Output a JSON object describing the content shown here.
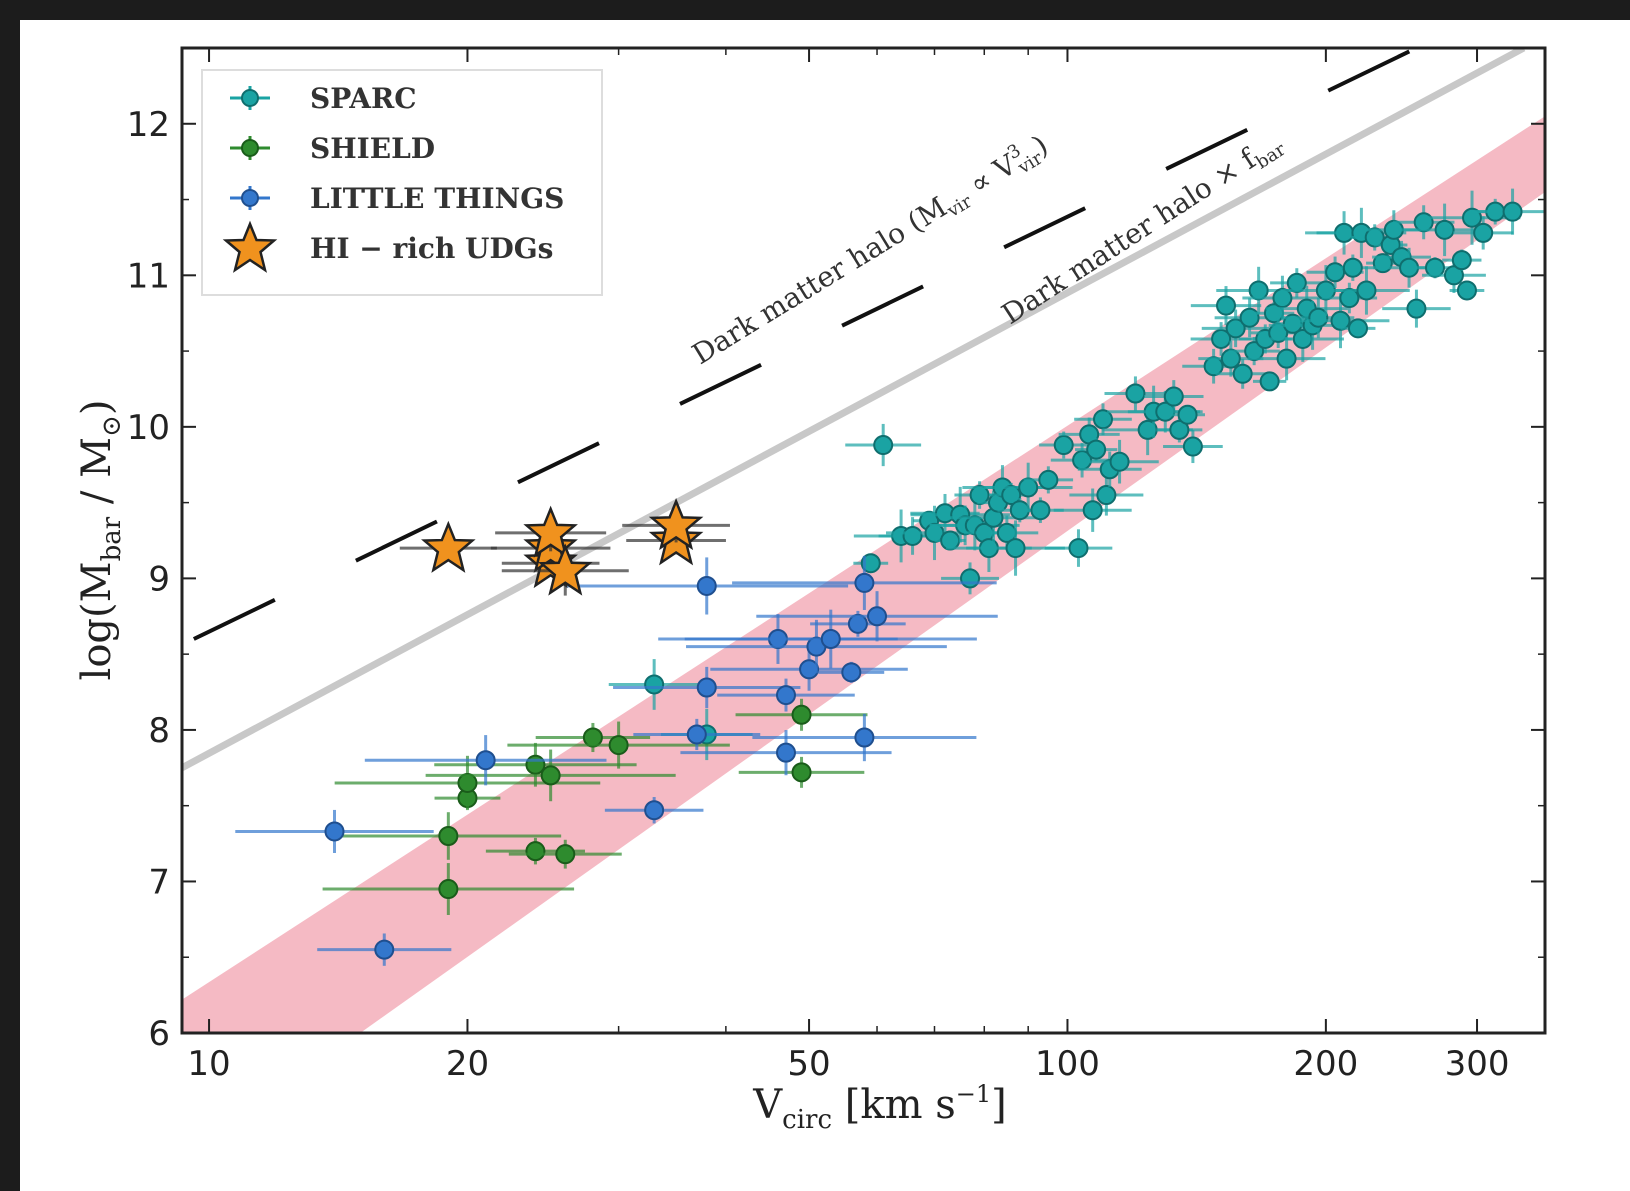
{
  "chart_data": {
    "type": "scatter",
    "xlabel": "V",
    "xlabel_sub": "circ",
    "xlabel_unit": "[km s",
    "xlabel_unit_sup": "−1",
    "xlabel_unit_end": "]",
    "ylabel": "log(M",
    "ylabel_sub": "bar",
    "ylabel_end": " / M",
    "ylabel_sub2": "⊙",
    "ylabel_close": ")",
    "x_scale": "log",
    "xlim": [
      9.3,
      360
    ],
    "ylim": [
      6,
      12.5
    ],
    "x_ticks": [
      10,
      20,
      50,
      100,
      200,
      300
    ],
    "x_tick_labels": [
      "10",
      "20",
      "50",
      "100",
      "200",
      "300"
    ],
    "y_ticks": [
      6,
      7,
      8,
      9,
      10,
      11,
      12
    ],
    "y_tick_labels": [
      "6",
      "7",
      "8",
      "9",
      "10",
      "11",
      "12"
    ],
    "legend_position": "top-left",
    "legend": [
      "SPARC",
      "SHIELD",
      "LITTLE THINGS",
      "HI − rich UDGs"
    ],
    "annotations": {
      "dm_halo": "Dark matter halo (M",
      "dm_halo_sub": "vir",
      "dm_halo_mid": " ∝ V",
      "dm_halo_sup": "3",
      "dm_halo_sub2": "vir",
      "dm_halo_end": ")",
      "dm_halo_fbar": "Dark matter halo × f",
      "dm_halo_fbar_sub": "bar"
    },
    "lines": [
      {
        "name": "Dark matter halo",
        "style": "dashed",
        "color": "#111111",
        "x": [
          9.6,
          255
        ],
        "y": [
          8.6,
          12.5
        ]
      },
      {
        "name": "Dark matter halo × f_bar",
        "style": "solid",
        "color": "#c8c8c8",
        "x": [
          9.3,
          340
        ],
        "y": [
          7.75,
          12.5
        ]
      }
    ],
    "band": {
      "color": "#f4b3be",
      "lower": {
        "x": [
          15,
          360
        ],
        "y": [
          6.0,
          11.55
        ]
      },
      "upper": {
        "x": [
          9.3,
          360
        ],
        "y": [
          6.22,
          12.05
        ]
      }
    },
    "series": [
      {
        "name": "SPARC",
        "color": "#1aa3a3",
        "edge": "#0f6e6e",
        "marker": "circle",
        "points": [
          [
            33,
            8.3
          ],
          [
            38,
            7.97
          ],
          [
            59,
            9.1
          ],
          [
            61,
            9.88
          ],
          [
            64,
            9.28
          ],
          [
            66,
            9.28
          ],
          [
            69,
            9.38
          ],
          [
            70,
            9.3
          ],
          [
            72,
            9.43
          ],
          [
            73,
            9.25
          ],
          [
            75,
            9.42
          ],
          [
            76,
            9.35
          ],
          [
            77,
            9.0
          ],
          [
            78,
            9.35
          ],
          [
            79,
            9.55
          ],
          [
            80,
            9.3
          ],
          [
            81,
            9.2
          ],
          [
            82,
            9.4
          ],
          [
            83,
            9.5
          ],
          [
            84,
            9.6
          ],
          [
            85,
            9.3
          ],
          [
            86,
            9.55
          ],
          [
            87,
            9.2
          ],
          [
            88,
            9.45
          ],
          [
            90,
            9.6
          ],
          [
            93,
            9.45
          ],
          [
            95,
            9.65
          ],
          [
            99,
            9.88
          ],
          [
            103,
            9.2
          ],
          [
            104,
            9.78
          ],
          [
            106,
            9.95
          ],
          [
            107,
            9.45
          ],
          [
            108,
            9.85
          ],
          [
            110,
            10.05
          ],
          [
            111,
            9.55
          ],
          [
            112,
            9.72
          ],
          [
            115,
            9.77
          ],
          [
            120,
            10.22
          ],
          [
            124,
            9.98
          ],
          [
            126,
            10.1
          ],
          [
            130,
            10.1
          ],
          [
            133,
            10.2
          ],
          [
            135,
            9.98
          ],
          [
            138,
            10.08
          ],
          [
            140,
            9.87
          ],
          [
            148,
            10.4
          ],
          [
            151,
            10.58
          ],
          [
            153,
            10.8
          ],
          [
            155,
            10.45
          ],
          [
            157,
            10.65
          ],
          [
            160,
            10.35
          ],
          [
            163,
            10.72
          ],
          [
            165,
            10.5
          ],
          [
            167,
            10.9
          ],
          [
            170,
            10.58
          ],
          [
            172,
            10.3
          ],
          [
            174,
            10.75
          ],
          [
            176,
            10.62
          ],
          [
            178,
            10.85
          ],
          [
            180,
            10.45
          ],
          [
            183,
            10.68
          ],
          [
            185,
            10.95
          ],
          [
            188,
            10.58
          ],
          [
            190,
            10.78
          ],
          [
            193,
            10.67
          ],
          [
            196,
            10.72
          ],
          [
            200,
            10.9
          ],
          [
            205,
            11.02
          ],
          [
            208,
            10.7
          ],
          [
            210,
            11.28
          ],
          [
            213,
            10.85
          ],
          [
            215,
            11.05
          ],
          [
            218,
            10.65
          ],
          [
            220,
            11.28
          ],
          [
            223,
            10.9
          ],
          [
            228,
            11.25
          ],
          [
            233,
            11.08
          ],
          [
            238,
            11.2
          ],
          [
            240,
            11.3
          ],
          [
            245,
            11.12
          ],
          [
            250,
            11.05
          ],
          [
            255,
            10.78
          ],
          [
            260,
            11.35
          ],
          [
            268,
            11.05
          ],
          [
            275,
            11.3
          ],
          [
            282,
            11.0
          ],
          [
            288,
            11.1
          ],
          [
            292,
            10.9
          ],
          [
            296,
            11.38
          ],
          [
            305,
            11.28
          ],
          [
            315,
            11.42
          ],
          [
            330,
            11.42
          ]
        ]
      },
      {
        "name": "SHIELD",
        "color": "#2e8b2e",
        "edge": "#1a5c1a",
        "marker": "circle",
        "points": [
          [
            19,
            6.95
          ],
          [
            19,
            7.3
          ],
          [
            20,
            7.55
          ],
          [
            20,
            7.65
          ],
          [
            24,
            7.2
          ],
          [
            24,
            7.77
          ],
          [
            25,
            7.7
          ],
          [
            26,
            7.18
          ],
          [
            28,
            7.95
          ],
          [
            30,
            7.9
          ],
          [
            49,
            7.72
          ],
          [
            49,
            8.1
          ]
        ]
      },
      {
        "name": "LITTLE THINGS",
        "color": "#3377cc",
        "edge": "#1f4f8f",
        "marker": "circle",
        "points": [
          [
            14,
            7.33
          ],
          [
            16,
            6.55
          ],
          [
            21,
            7.8
          ],
          [
            33,
            7.47
          ],
          [
            37,
            7.97
          ],
          [
            38,
            8.28
          ],
          [
            38,
            8.95
          ],
          [
            46,
            8.6
          ],
          [
            47,
            7.85
          ],
          [
            47,
            8.23
          ],
          [
            50,
            8.4
          ],
          [
            51,
            8.55
          ],
          [
            53,
            8.6
          ],
          [
            56,
            8.38
          ],
          [
            57,
            8.7
          ],
          [
            58,
            8.97
          ],
          [
            58,
            7.95
          ],
          [
            60,
            8.75
          ]
        ]
      },
      {
        "name": "HI − rich UDGs",
        "color": "#f0921e",
        "edge": "#222222",
        "marker": "star",
        "points": [
          [
            19,
            9.2
          ],
          [
            25,
            9.1
          ],
          [
            25,
            9.2
          ],
          [
            25,
            9.3
          ],
          [
            26,
            9.05
          ],
          [
            35,
            9.25
          ],
          [
            35,
            9.35
          ]
        ]
      }
    ]
  }
}
